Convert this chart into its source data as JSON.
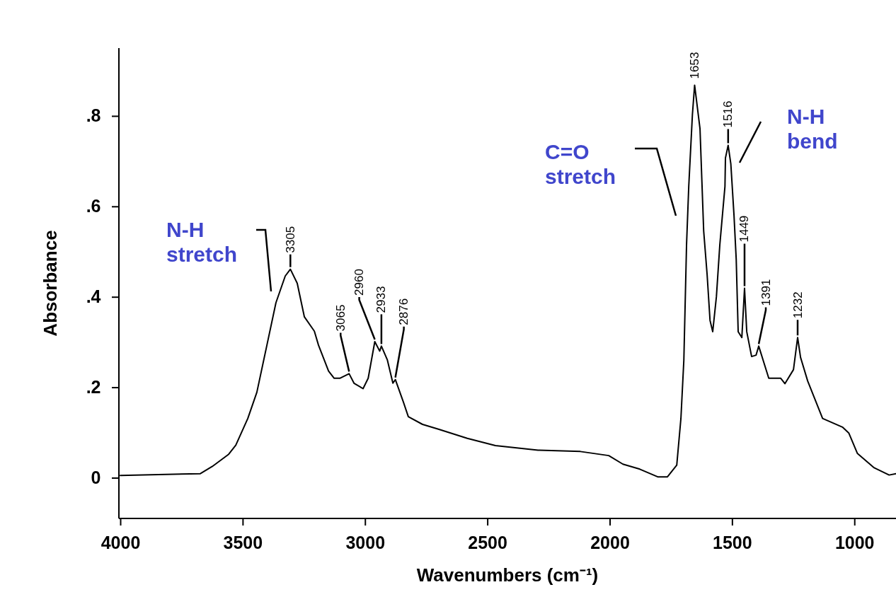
{
  "chart_data": {
    "type": "line",
    "xlabel": "Wavenumbers (cm⁻¹)",
    "ylabel": "Absorbance",
    "xlim": [
      4000,
      830
    ],
    "xticks": [
      4000,
      3500,
      3000,
      2500,
      2000,
      1500,
      1000
    ],
    "ylim": [
      -0.09,
      0.95
    ],
    "yticks": [
      {
        "value": 0,
        "label": "0"
      },
      {
        "value": 0.2,
        "label": ".2"
      },
      {
        "value": 0.4,
        "label": ".4"
      },
      {
        "value": 0.6,
        "label": ".6"
      },
      {
        "value": 0.8,
        "label": ".8"
      }
    ],
    "grid": false,
    "series": [
      {
        "color": "#000000",
        "x": [
          4000,
          3673,
          3624,
          3557,
          3528,
          3479,
          3442,
          3401,
          3364,
          3326,
          3305,
          3277,
          3248,
          3207,
          3190,
          3149,
          3126,
          3103,
          3065,
          3045,
          3008,
          2987,
          2960,
          2940,
          2933,
          2909,
          2886,
          2876,
          2843,
          2823,
          2765,
          2698,
          2582,
          2467,
          2293,
          2120,
          2004,
          1946,
          1877,
          1804,
          1764,
          1726,
          1709,
          1697,
          1686,
          1677,
          1662,
          1653,
          1631,
          1616,
          1602,
          1590,
          1579,
          1564,
          1550,
          1529,
          1527,
          1516,
          1505,
          1492,
          1483,
          1475,
          1460,
          1449,
          1440,
          1420,
          1402,
          1391,
          1350,
          1301,
          1284,
          1249,
          1232,
          1220,
          1191,
          1130,
          1049,
          1023,
          988,
          919,
          858,
          830
        ],
        "values": [
          0.005,
          0.009,
          0.025,
          0.052,
          0.072,
          0.131,
          0.189,
          0.293,
          0.387,
          0.446,
          0.461,
          0.43,
          0.356,
          0.324,
          0.293,
          0.236,
          0.22,
          0.22,
          0.23,
          0.209,
          0.197,
          0.22,
          0.301,
          0.28,
          0.291,
          0.261,
          0.209,
          0.217,
          0.167,
          0.135,
          0.118,
          0.107,
          0.087,
          0.071,
          0.061,
          0.058,
          0.049,
          0.03,
          0.019,
          0.002,
          0.002,
          0.028,
          0.131,
          0.26,
          0.515,
          0.644,
          0.803,
          0.868,
          0.772,
          0.546,
          0.45,
          0.348,
          0.323,
          0.4,
          0.515,
          0.644,
          0.707,
          0.735,
          0.694,
          0.58,
          0.483,
          0.323,
          0.31,
          0.419,
          0.323,
          0.268,
          0.271,
          0.291,
          0.22,
          0.22,
          0.208,
          0.239,
          0.31,
          0.266,
          0.214,
          0.131,
          0.112,
          0.099,
          0.054,
          0.022,
          0.006,
          0.009
        ]
      }
    ],
    "annotations": [
      "N-H stretch",
      "C=O stretch",
      "N-H bend",
      {
        "text": "3305",
        "x": 3305,
        "y": 0.461
      },
      {
        "text": "3065",
        "x": 3065,
        "y": 0.23
      },
      {
        "text": "2960",
        "x": 2960,
        "y": 0.301
      },
      {
        "text": "2933",
        "x": 2933,
        "y": 0.291
      },
      {
        "text": "2876",
        "x": 2876,
        "y": 0.217
      },
      {
        "text": "1653",
        "x": 1653,
        "y": 0.868
      },
      {
        "text": "1516",
        "x": 1516,
        "y": 0.735
      },
      {
        "text": "1449",
        "x": 1449,
        "y": 0.419
      },
      {
        "text": "1391",
        "x": 1391,
        "y": 0.291
      },
      {
        "text": "1232",
        "x": 1232,
        "y": 0.31
      }
    ]
  }
}
